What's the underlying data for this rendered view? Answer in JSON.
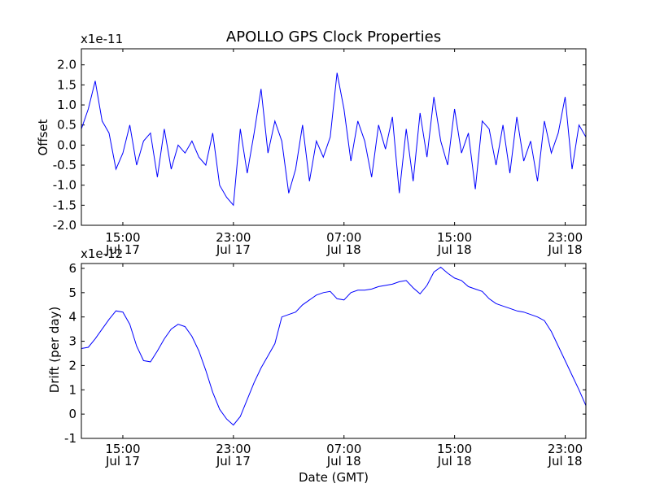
{
  "figure": {
    "title": "APOLLO GPS Clock Properties",
    "xlabel": "Date (GMT)"
  },
  "chart_data": [
    {
      "type": "line",
      "ylabel": "Offset",
      "offset_text": "x1e-11",
      "ylim": [
        -2.0,
        2.4
      ],
      "yticks": [
        -2.0,
        -1.5,
        -1.0,
        -0.5,
        0.0,
        0.5,
        1.0,
        1.5,
        2.0
      ],
      "yticklabels": [
        "-2.0",
        "-1.5",
        "-1.0",
        "-0.5",
        "0.0",
        "0.5",
        "1.0",
        "1.5",
        "2.0"
      ],
      "xlim": [
        "2014-07-17T12:00",
        "2014-07-19T00:30"
      ],
      "xticks": [
        "2014-07-17T15:00",
        "2014-07-17T23:00",
        "2014-07-18T07:00",
        "2014-07-18T15:00",
        "2014-07-18T23:00"
      ],
      "xticklabels": [
        [
          "15:00",
          "Jul 17"
        ],
        [
          "23:00",
          "Jul 17"
        ],
        [
          "07:00",
          "Jul 18"
        ],
        [
          "15:00",
          "Jul 18"
        ],
        [
          "23:00",
          "Jul 18"
        ]
      ],
      "line_color": "#0000ff",
      "grid": false,
      "series": [
        {
          "x": [
            "2014-07-17T12:00",
            "2014-07-17T12:30",
            "2014-07-17T13:00",
            "2014-07-17T13:30",
            "2014-07-17T14:00",
            "2014-07-17T14:30",
            "2014-07-17T15:00",
            "2014-07-17T15:30",
            "2014-07-17T16:00",
            "2014-07-17T16:30",
            "2014-07-17T17:00",
            "2014-07-17T17:30",
            "2014-07-17T18:00",
            "2014-07-17T18:30",
            "2014-07-17T19:00",
            "2014-07-17T19:30",
            "2014-07-17T20:00",
            "2014-07-17T20:30",
            "2014-07-17T21:00",
            "2014-07-17T21:30",
            "2014-07-17T22:00",
            "2014-07-17T22:30",
            "2014-07-17T23:00",
            "2014-07-17T23:30",
            "2014-07-18T00:00",
            "2014-07-18T00:30",
            "2014-07-18T01:00",
            "2014-07-18T01:30",
            "2014-07-18T02:00",
            "2014-07-18T02:30",
            "2014-07-18T03:00",
            "2014-07-18T03:30",
            "2014-07-18T04:00",
            "2014-07-18T04:30",
            "2014-07-18T05:00",
            "2014-07-18T05:30",
            "2014-07-18T06:00",
            "2014-07-18T06:30",
            "2014-07-18T07:00",
            "2014-07-18T07:30",
            "2014-07-18T08:00",
            "2014-07-18T08:30",
            "2014-07-18T09:00",
            "2014-07-18T09:30",
            "2014-07-18T10:00",
            "2014-07-18T10:30",
            "2014-07-18T11:00",
            "2014-07-18T11:30",
            "2014-07-18T12:00",
            "2014-07-18T12:30",
            "2014-07-18T13:00",
            "2014-07-18T13:30",
            "2014-07-18T14:00",
            "2014-07-18T14:30",
            "2014-07-18T15:00",
            "2014-07-18T15:30",
            "2014-07-18T16:00",
            "2014-07-18T16:30",
            "2014-07-18T17:00",
            "2014-07-18T17:30",
            "2014-07-18T18:00",
            "2014-07-18T18:30",
            "2014-07-18T19:00",
            "2014-07-18T19:30",
            "2014-07-18T20:00",
            "2014-07-18T20:30",
            "2014-07-18T21:00",
            "2014-07-18T21:30",
            "2014-07-18T22:00",
            "2014-07-18T22:30",
            "2014-07-18T23:00",
            "2014-07-18T23:30",
            "2014-07-19T00:00",
            "2014-07-19T00:30"
          ],
          "values": [
            0.4,
            0.9,
            1.6,
            0.6,
            0.3,
            -0.6,
            -0.2,
            0.5,
            -0.5,
            0.1,
            0.3,
            -0.8,
            0.4,
            -0.6,
            0.0,
            -0.2,
            0.1,
            -0.3,
            -0.5,
            0.3,
            -1.0,
            -1.3,
            -1.5,
            0.4,
            -0.7,
            0.3,
            1.4,
            -0.2,
            0.6,
            0.1,
            -1.2,
            -0.6,
            0.5,
            -0.9,
            0.1,
            -0.3,
            0.2,
            1.8,
            0.9,
            -0.4,
            0.6,
            0.1,
            -0.8,
            0.5,
            -0.1,
            0.7,
            -1.2,
            0.4,
            -0.9,
            0.8,
            -0.3,
            1.2,
            0.1,
            -0.5,
            0.9,
            -0.2,
            0.3,
            -1.1,
            0.6,
            0.4,
            -0.5,
            0.5,
            -0.7,
            0.7,
            -0.4,
            0.1,
            -0.9,
            0.6,
            -0.2,
            0.3,
            1.2,
            -0.6,
            0.5,
            0.2
          ]
        }
      ]
    },
    {
      "type": "line",
      "ylabel": "Drift (per day)",
      "offset_text": "x1e-12",
      "ylim": [
        -1,
        6.2
      ],
      "yticks": [
        -1,
        0,
        1,
        2,
        3,
        4,
        5,
        6
      ],
      "yticklabels": [
        "-1",
        "0",
        "1",
        "2",
        "3",
        "4",
        "5",
        "6"
      ],
      "xlim": [
        "2014-07-17T12:00",
        "2014-07-19T00:30"
      ],
      "xticks": [
        "2014-07-17T15:00",
        "2014-07-17T23:00",
        "2014-07-18T07:00",
        "2014-07-18T15:00",
        "2014-07-18T23:00"
      ],
      "xticklabels": [
        [
          "15:00",
          "Jul 17"
        ],
        [
          "23:00",
          "Jul 17"
        ],
        [
          "07:00",
          "Jul 18"
        ],
        [
          "15:00",
          "Jul 18"
        ],
        [
          "23:00",
          "Jul 18"
        ]
      ],
      "line_color": "#0000ff",
      "grid": false,
      "series": [
        {
          "x": [
            "2014-07-17T12:00",
            "2014-07-17T12:30",
            "2014-07-17T13:00",
            "2014-07-17T13:30",
            "2014-07-17T14:00",
            "2014-07-17T14:30",
            "2014-07-17T15:00",
            "2014-07-17T15:30",
            "2014-07-17T16:00",
            "2014-07-17T16:30",
            "2014-07-17T17:00",
            "2014-07-17T17:30",
            "2014-07-17T18:00",
            "2014-07-17T18:30",
            "2014-07-17T19:00",
            "2014-07-17T19:30",
            "2014-07-17T20:00",
            "2014-07-17T20:30",
            "2014-07-17T21:00",
            "2014-07-17T21:30",
            "2014-07-17T22:00",
            "2014-07-17T22:30",
            "2014-07-17T23:00",
            "2014-07-17T23:30",
            "2014-07-18T00:00",
            "2014-07-18T00:30",
            "2014-07-18T01:00",
            "2014-07-18T01:30",
            "2014-07-18T02:00",
            "2014-07-18T02:30",
            "2014-07-18T03:00",
            "2014-07-18T03:30",
            "2014-07-18T04:00",
            "2014-07-18T04:30",
            "2014-07-18T05:00",
            "2014-07-18T05:30",
            "2014-07-18T06:00",
            "2014-07-18T06:30",
            "2014-07-18T07:00",
            "2014-07-18T07:30",
            "2014-07-18T08:00",
            "2014-07-18T08:30",
            "2014-07-18T09:00",
            "2014-07-18T09:30",
            "2014-07-18T10:00",
            "2014-07-18T10:30",
            "2014-07-18T11:00",
            "2014-07-18T11:30",
            "2014-07-18T12:00",
            "2014-07-18T12:30",
            "2014-07-18T13:00",
            "2014-07-18T13:30",
            "2014-07-18T14:00",
            "2014-07-18T14:30",
            "2014-07-18T15:00",
            "2014-07-18T15:30",
            "2014-07-18T16:00",
            "2014-07-18T16:30",
            "2014-07-18T17:00",
            "2014-07-18T17:30",
            "2014-07-18T18:00",
            "2014-07-18T18:30",
            "2014-07-18T19:00",
            "2014-07-18T19:30",
            "2014-07-18T20:00",
            "2014-07-18T20:30",
            "2014-07-18T21:00",
            "2014-07-18T21:30",
            "2014-07-18T22:00",
            "2014-07-18T22:30",
            "2014-07-18T23:00",
            "2014-07-18T23:30",
            "2014-07-19T00:00",
            "2014-07-19T00:30"
          ],
          "values": [
            2.7,
            2.75,
            3.1,
            3.5,
            3.9,
            4.25,
            4.2,
            3.7,
            2.8,
            2.2,
            2.15,
            2.6,
            3.1,
            3.5,
            3.7,
            3.6,
            3.2,
            2.6,
            1.8,
            0.9,
            0.2,
            -0.2,
            -0.45,
            -0.1,
            0.6,
            1.3,
            1.9,
            2.4,
            2.9,
            4.0,
            4.1,
            4.2,
            4.5,
            4.7,
            4.9,
            5.0,
            5.05,
            4.75,
            4.7,
            5.0,
            5.1,
            5.1,
            5.15,
            5.25,
            5.3,
            5.35,
            5.45,
            5.5,
            5.2,
            4.95,
            5.3,
            5.85,
            6.05,
            5.8,
            5.6,
            5.5,
            5.25,
            5.15,
            5.05,
            4.75,
            4.55,
            4.45,
            4.35,
            4.25,
            4.2,
            4.1,
            4.0,
            3.85,
            3.4,
            2.8,
            2.2,
            1.6,
            1.0,
            0.35
          ]
        }
      ]
    }
  ]
}
